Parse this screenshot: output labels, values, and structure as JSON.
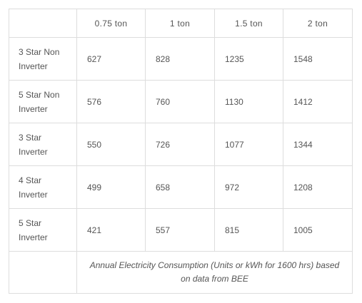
{
  "table": {
    "corner": "",
    "columns": [
      "0.75 ton",
      "1 ton",
      "1.5 ton",
      "2 ton"
    ],
    "rows": [
      {
        "label_line1": "3 Star Non",
        "label_line2": "Inverter",
        "values": [
          "627",
          "828",
          "1235",
          "1548"
        ]
      },
      {
        "label_line1": "5 Star Non",
        "label_line2": "Inverter",
        "values": [
          "576",
          "760",
          "1130",
          "1412"
        ]
      },
      {
        "label_line1": "3 Star",
        "label_line2": "Inverter",
        "values": [
          "550",
          "726",
          "1077",
          "1344"
        ]
      },
      {
        "label_line1": "4 Star",
        "label_line2": "Inverter",
        "values": [
          "499",
          "658",
          "972",
          "1208"
        ]
      },
      {
        "label_line1": "5 Star",
        "label_line2": "Inverter",
        "values": [
          "421",
          "557",
          "815",
          "1005"
        ]
      }
    ],
    "caption": "Annual Electricity Consumption (Units or kWh for 1600 hrs) based on data from BEE"
  }
}
